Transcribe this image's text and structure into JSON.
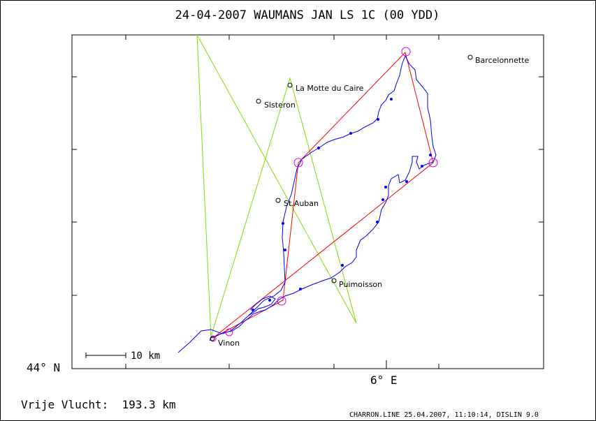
{
  "header": {
    "title": "24-04-2007   WAUMANS JAN   LS 1C (00 YDD)"
  },
  "map": {
    "lat_label": "44° N",
    "lon_label": "6° E",
    "scale_bar_label": "10 km",
    "colors": {
      "track": "#0000ff",
      "task_course": "#ff0000",
      "declared_course": "#80e000",
      "turnpoint_circle": "#e000e0",
      "frame": "#000000"
    },
    "places": [
      {
        "name": "Barcelonnette"
      },
      {
        "name": "La Motte du Caire"
      },
      {
        "name": "Sisteron"
      },
      {
        "name": "St.Auban"
      },
      {
        "name": "Puimoisson"
      },
      {
        "name": "Vinon"
      }
    ]
  },
  "footer": {
    "distance_label": "Vrije Vlucht:  193.3 km",
    "credits": "CHARRON.LINE 25.04.2007, 11:10:14, DISLIN 9.0"
  }
}
